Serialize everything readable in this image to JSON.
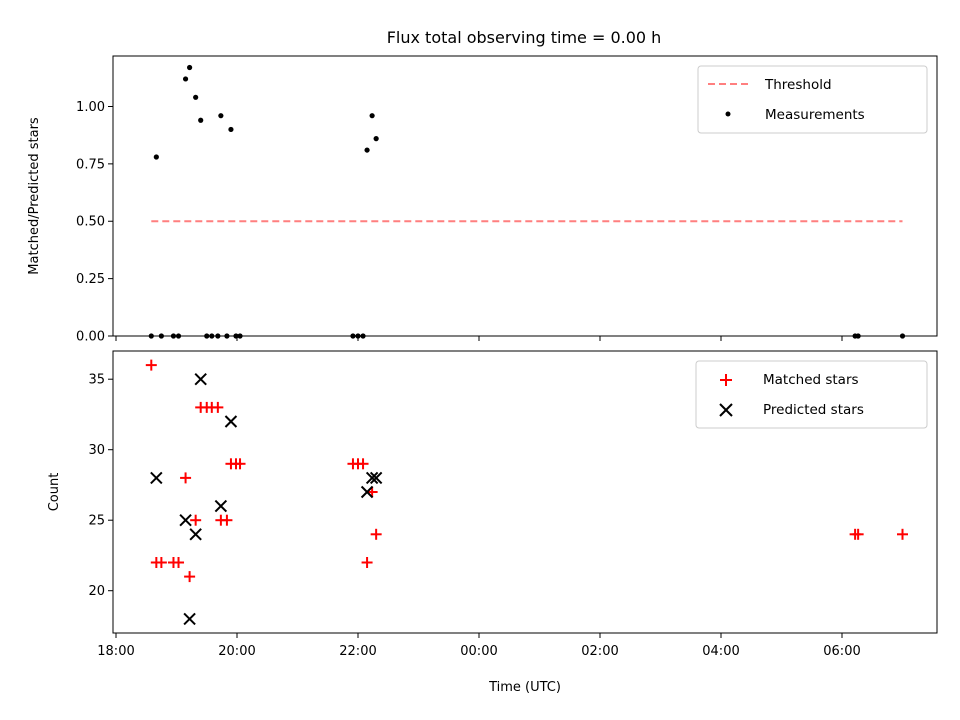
{
  "chart_data": {
    "title": "Flux total observing time = 0.00 h",
    "xlabel": "Time (UTC)",
    "x_unit": "time of day (UTC)",
    "x_tick_labels": [
      "18:00",
      "20:00",
      "22:00",
      "00:00",
      "02:00",
      "04:00",
      "06:00"
    ],
    "top": {
      "type": "scatter",
      "ylabel": "Matched/Predicted stars",
      "ylim": [
        0,
        1.22
      ],
      "y_ticks": [
        "0.00",
        "0.25",
        "0.50",
        "0.75",
        "1.00"
      ],
      "legend_position": "top-right",
      "threshold": {
        "name": "Threshold",
        "value": 0.5,
        "x_start": "18:35",
        "x_end": "07:00",
        "color": "#ff7f7f"
      },
      "measurements": {
        "name": "Measurements",
        "color": "#000000",
        "points": [
          {
            "x": "18:35",
            "y": 0.0
          },
          {
            "x": "18:40",
            "y": 0.78
          },
          {
            "x": "18:45",
            "y": 0.0
          },
          {
            "x": "18:57",
            "y": 0.0
          },
          {
            "x": "19:02",
            "y": 0.0
          },
          {
            "x": "19:09",
            "y": 1.12
          },
          {
            "x": "19:13",
            "y": 1.17
          },
          {
            "x": "19:19",
            "y": 1.04
          },
          {
            "x": "19:24",
            "y": 0.94
          },
          {
            "x": "19:30",
            "y": 0.0
          },
          {
            "x": "19:35",
            "y": 0.0
          },
          {
            "x": "19:41",
            "y": 0.0
          },
          {
            "x": "19:44",
            "y": 0.96
          },
          {
            "x": "19:50",
            "y": 0.0
          },
          {
            "x": "19:54",
            "y": 0.9
          },
          {
            "x": "19:59",
            "y": 0.0
          },
          {
            "x": "20:03",
            "y": 0.0
          },
          {
            "x": "21:55",
            "y": 0.0
          },
          {
            "x": "22:00",
            "y": 0.0
          },
          {
            "x": "22:05",
            "y": 0.0
          },
          {
            "x": "22:09",
            "y": 0.81
          },
          {
            "x": "22:14",
            "y": 0.96
          },
          {
            "x": "22:18",
            "y": 0.86
          },
          {
            "x": "06:13",
            "y": 0.0
          },
          {
            "x": "06:16",
            "y": 0.0
          },
          {
            "x": "07:00",
            "y": 0.0
          }
        ]
      }
    },
    "bottom": {
      "type": "scatter",
      "ylabel": "Count",
      "ylim": [
        17,
        37
      ],
      "y_ticks": [
        "20",
        "25",
        "30",
        "35"
      ],
      "legend_position": "top-right",
      "matched": {
        "name": "Matched stars",
        "color": "#ff0000",
        "points": [
          {
            "x": "18:35",
            "y": 36
          },
          {
            "x": "18:40",
            "y": 22
          },
          {
            "x": "18:45",
            "y": 22
          },
          {
            "x": "18:57",
            "y": 22
          },
          {
            "x": "19:02",
            "y": 22
          },
          {
            "x": "19:09",
            "y": 28
          },
          {
            "x": "19:13",
            "y": 21
          },
          {
            "x": "19:19",
            "y": 25
          },
          {
            "x": "19:24",
            "y": 33
          },
          {
            "x": "19:30",
            "y": 33
          },
          {
            "x": "19:35",
            "y": 33
          },
          {
            "x": "19:41",
            "y": 33
          },
          {
            "x": "19:44",
            "y": 25
          },
          {
            "x": "19:50",
            "y": 25
          },
          {
            "x": "19:54",
            "y": 29
          },
          {
            "x": "19:59",
            "y": 29
          },
          {
            "x": "20:03",
            "y": 29
          },
          {
            "x": "21:55",
            "y": 29
          },
          {
            "x": "22:00",
            "y": 29
          },
          {
            "x": "22:05",
            "y": 29
          },
          {
            "x": "22:09",
            "y": 22
          },
          {
            "x": "22:14",
            "y": 27
          },
          {
            "x": "22:18",
            "y": 24
          },
          {
            "x": "06:13",
            "y": 24
          },
          {
            "x": "06:16",
            "y": 24
          },
          {
            "x": "07:00",
            "y": 24
          }
        ]
      },
      "predicted": {
        "name": "Predicted stars",
        "color": "#000000",
        "points": [
          {
            "x": "18:40",
            "y": 28
          },
          {
            "x": "19:09",
            "y": 25
          },
          {
            "x": "19:13",
            "y": 18
          },
          {
            "x": "19:19",
            "y": 24
          },
          {
            "x": "19:24",
            "y": 35
          },
          {
            "x": "19:44",
            "y": 26
          },
          {
            "x": "19:54",
            "y": 32
          },
          {
            "x": "22:09",
            "y": 27
          },
          {
            "x": "22:14",
            "y": 28
          },
          {
            "x": "22:18",
            "y": 28
          }
        ]
      }
    }
  }
}
